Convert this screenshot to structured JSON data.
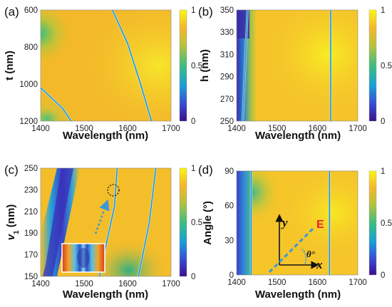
{
  "colors": {
    "yellow": "#f8f21c",
    "orange": "#f2b92a",
    "green": "#41bd76",
    "cyan": "#15a7d6",
    "blue": "#3b47c8",
    "purple": "#4a1c9a",
    "arrow": "#3a9ad6",
    "e_label": "#e8232b"
  },
  "chart_data": [
    {
      "panel_label": "(a)",
      "type": "heatmap",
      "xlabel": "Wavelength (nm)",
      "ylabel": "t (nm)",
      "xlim": [
        1400,
        1700
      ],
      "ylim": [
        600,
        1200
      ],
      "y_inverted": true,
      "x_ticks": [
        "1400",
        "1500",
        "1600",
        "1700"
      ],
      "y_ticks": [
        "600",
        "800",
        "1000",
        "1200"
      ],
      "colorbar_ticks": [
        "0",
        "0.5",
        "1"
      ],
      "zlim": [
        0,
        1
      ],
      "resonance_lines": [
        {
          "points": [
            [
              1400,
              1020
            ],
            [
              1450,
              1130
            ],
            [
              1470,
              1200
            ]
          ]
        },
        {
          "points": [
            [
              1565,
              600
            ],
            [
              1600,
              780
            ],
            [
              1630,
              1000
            ],
            [
              1655,
              1200
            ]
          ]
        }
      ]
    },
    {
      "panel_label": "(b)",
      "type": "heatmap",
      "xlabel": "Wavelength (nm)",
      "ylabel": "h (nm)",
      "xlim": [
        1400,
        1700
      ],
      "ylim": [
        250,
        350
      ],
      "x_ticks": [
        "1400",
        "1500",
        "1600",
        "1700"
      ],
      "y_ticks": [
        "250",
        "270",
        "290",
        "310",
        "330",
        "350"
      ],
      "colorbar_ticks": [
        "0",
        "0.5",
        "1"
      ],
      "zlim": [
        0,
        1
      ],
      "resonance_lines": [
        {
          "points": [
            [
              1415,
              250
            ],
            [
              1427,
              350
            ]
          ]
        },
        {
          "points": [
            [
              1633,
              250
            ],
            [
              1633,
              350
            ]
          ]
        }
      ]
    },
    {
      "panel_label": "(c)",
      "type": "heatmap",
      "xlabel": "Wavelength (nm)",
      "ylabel": "v1 (nm)",
      "ylabel_main": "v",
      "ylabel_sub": "1",
      "ylabel_tail": " (nm)",
      "xlim": [
        1400,
        1700
      ],
      "ylim": [
        150,
        250
      ],
      "x_ticks": [
        "1400",
        "1500",
        "1600",
        "1700"
      ],
      "y_ticks": [
        "150",
        "170",
        "190",
        "210",
        "230",
        "250"
      ],
      "colorbar_ticks": [
        "0",
        "0.5",
        "1"
      ],
      "zlim": [
        0,
        1
      ],
      "resonance_lines": [
        {
          "points": [
            [
              1535,
              150
            ],
            [
              1570,
              215
            ],
            [
              1576,
              250
            ]
          ]
        },
        {
          "points": [
            [
              1625,
              150
            ],
            [
              1650,
              200
            ],
            [
              1665,
              250
            ]
          ]
        }
      ]
    },
    {
      "panel_label": "(d)",
      "type": "heatmap",
      "xlabel": "Wavelength (nm)",
      "ylabel": "Angle (°)",
      "xlim": [
        1400,
        1700
      ],
      "ylim": [
        0,
        90
      ],
      "x_ticks": [
        "1400",
        "1500",
        "1600",
        "1700"
      ],
      "y_ticks": [
        "0",
        "30",
        "60",
        "90"
      ],
      "colorbar_ticks": [
        "0",
        "0.5",
        "1"
      ],
      "zlim": [
        0,
        1
      ],
      "resonance_lines": [
        {
          "points": [
            [
              1436,
              0
            ],
            [
              1436,
              90
            ]
          ]
        },
        {
          "points": [
            [
              1630,
              0
            ],
            [
              1630,
              90
            ]
          ]
        }
      ],
      "inset_labels": {
        "y_axis": "y",
        "x_axis": "x",
        "field": "E",
        "angle": "θ°"
      }
    }
  ]
}
